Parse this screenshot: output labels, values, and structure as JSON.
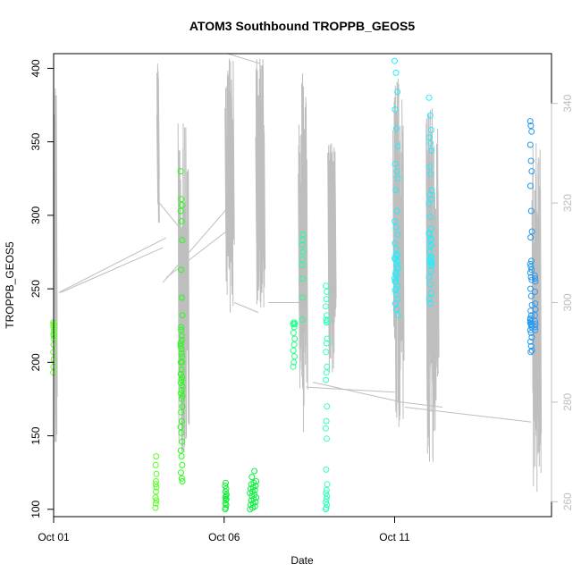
{
  "chart_data": {
    "type": "scatter",
    "title": "ATOM3 Southbound TROPPB_GEOS5",
    "xlabel": "Date",
    "ylabel": "TROPPB_GEOS5",
    "x_ticks": [
      "Oct 01",
      "Oct 06",
      "Oct 11"
    ],
    "x_tick_days": [
      1,
      6,
      11
    ],
    "xlim_days": [
      1,
      15.6
    ],
    "y_ticks": [
      100,
      150,
      200,
      250,
      300,
      350,
      400
    ],
    "ylim": [
      95,
      410
    ],
    "y2_ticks": [
      260,
      280,
      300,
      320,
      340
    ],
    "y2lim": [
      257,
      350
    ],
    "grid": false,
    "colors": {
      "secondary_line": "#bebebe",
      "secondary_axis": "#bdbdbd",
      "frame": "#000000"
    },
    "point_groups": [
      {
        "color": "#66ff33",
        "x": 1.0,
        "spread": 0.02,
        "values": [
          193,
          197,
          202,
          207,
          212,
          216,
          219,
          220,
          222,
          224,
          226,
          227,
          225,
          218
        ]
      },
      {
        "color": "#55ff22",
        "x": 4.0,
        "spread": 0.03,
        "values": [
          101,
          104,
          106,
          108,
          112,
          115,
          117,
          119,
          124,
          130,
          136
        ]
      },
      {
        "color": "#22ff11",
        "x": 4.75,
        "spread": 0.05,
        "values": [
          330,
          311,
          307,
          303,
          296,
          283,
          263,
          244,
          232,
          222,
          215,
          211,
          206,
          200,
          192,
          188,
          184,
          179,
          175,
          170,
          166,
          160,
          156,
          152,
          146,
          140,
          136,
          130,
          125,
          121,
          119,
          224,
          218,
          213,
          209,
          204,
          200,
          195,
          190,
          186,
          181,
          177
        ]
      },
      {
        "color": "#11ee33",
        "x": 6.05,
        "spread": 0.04,
        "values": [
          100,
          101,
          103,
          104,
          106,
          107,
          108,
          109,
          110,
          112,
          114,
          116,
          118
        ]
      },
      {
        "color": "#11ee44",
        "x": 6.85,
        "spread": 0.18,
        "values": [
          100,
          101,
          102,
          103,
          104,
          105,
          106,
          107,
          108,
          109,
          110,
          111,
          112,
          113,
          114,
          115,
          116,
          117,
          118,
          119,
          122,
          126
        ]
      },
      {
        "color": "#22ff88",
        "x": 8.05,
        "spread": 0.05,
        "values": [
          197,
          200,
          204,
          208,
          212,
          216,
          220,
          224,
          226,
          227,
          227,
          226
        ]
      },
      {
        "color": "#22ff99",
        "x": 8.3,
        "spread": 0.03,
        "values": [
          229,
          244,
          257,
          266,
          270,
          275,
          280,
          283,
          287
        ]
      },
      {
        "color": "#33ffbb",
        "x": 9.0,
        "spread": 0.04,
        "values": [
          100,
          101,
          103,
          105,
          107,
          109,
          111,
          113,
          117,
          127,
          148,
          155,
          160,
          170,
          188,
          193,
          197,
          207,
          213,
          216,
          229,
          232,
          238,
          243,
          248,
          252,
          227,
          228
        ]
      },
      {
        "color": "#22eeff",
        "x": 11.05,
        "spread": 0.1,
        "values": [
          405,
          397,
          384,
          372,
          359,
          347,
          335,
          330,
          325,
          317,
          303,
          296,
          292,
          287,
          281,
          277,
          273,
          270,
          267,
          264,
          261,
          259,
          257,
          255,
          252,
          249,
          246,
          243,
          240,
          236,
          232,
          260,
          265,
          271,
          273,
          269,
          255,
          250
        ]
      },
      {
        "color": "#22eeff",
        "x": 12.05,
        "spread": 0.08,
        "values": [
          380,
          368,
          358,
          353,
          349,
          344,
          333,
          328,
          317,
          314,
          311,
          308,
          299,
          291,
          287,
          283,
          280,
          275,
          271,
          268,
          266,
          262,
          258,
          253,
          247,
          243,
          240,
          272,
          270,
          268,
          266,
          279,
          284,
          288
        ]
      },
      {
        "color": "#2299ee",
        "x": 15.0,
        "spread": 0.05,
        "values": [
          364,
          361,
          357,
          348,
          337,
          330,
          320,
          303,
          289,
          285,
          269,
          267,
          265,
          263,
          261,
          258,
          256,
          250,
          245,
          239,
          235,
          232,
          229,
          226,
          224,
          222,
          220,
          217,
          214,
          211,
          208,
          207,
          226,
          227,
          228,
          225,
          230
        ]
      },
      {
        "color": "#3399ee",
        "x": 15.12,
        "spread": 0.02,
        "values": [
          259,
          257,
          255,
          248,
          240,
          236,
          232,
          228,
          226,
          224,
          222
        ]
      }
    ],
    "secondary_series": {
      "name": "",
      "axis": "right",
      "bursts": [
        {
          "x": 1.05,
          "spread": 0.06,
          "min": 272,
          "max": 343
        },
        {
          "x": 4.05,
          "spread": 0.05,
          "min": 316,
          "max": 348
        },
        {
          "x": 4.8,
          "spread": 0.3,
          "min": 270,
          "max": 336
        },
        {
          "x": 6.15,
          "spread": 0.25,
          "min": 298,
          "max": 349
        },
        {
          "x": 7.05,
          "spread": 0.25,
          "min": 299,
          "max": 349
        },
        {
          "x": 8.3,
          "spread": 0.25,
          "min": 274,
          "max": 346
        },
        {
          "x": 9.15,
          "spread": 0.22,
          "min": 286,
          "max": 332
        },
        {
          "x": 11.1,
          "spread": 0.3,
          "min": 275,
          "max": 345
        },
        {
          "x": 12.1,
          "spread": 0.35,
          "min": 268,
          "max": 339
        },
        {
          "x": 15.15,
          "spread": 0.25,
          "min": 262,
          "max": 332
        }
      ],
      "connectors": [
        [
          1.15,
          302,
          4.3,
          313
        ],
        [
          1.2,
          302,
          4.2,
          311
        ],
        [
          4.1,
          320,
          4.7,
          315
        ],
        [
          4.3,
          305,
          6.2,
          315
        ],
        [
          4.2,
          304,
          6.1,
          319
        ],
        [
          6.1,
          350,
          7.05,
          348
        ],
        [
          6.3,
          300,
          7.0,
          298
        ],
        [
          7.3,
          300,
          8.4,
          300
        ],
        [
          8.4,
          283,
          11.0,
          282
        ],
        [
          8.6,
          284,
          11.2,
          280
        ],
        [
          11.3,
          279,
          15.0,
          276
        ],
        [
          11.2,
          280,
          12.4,
          279
        ]
      ]
    }
  }
}
